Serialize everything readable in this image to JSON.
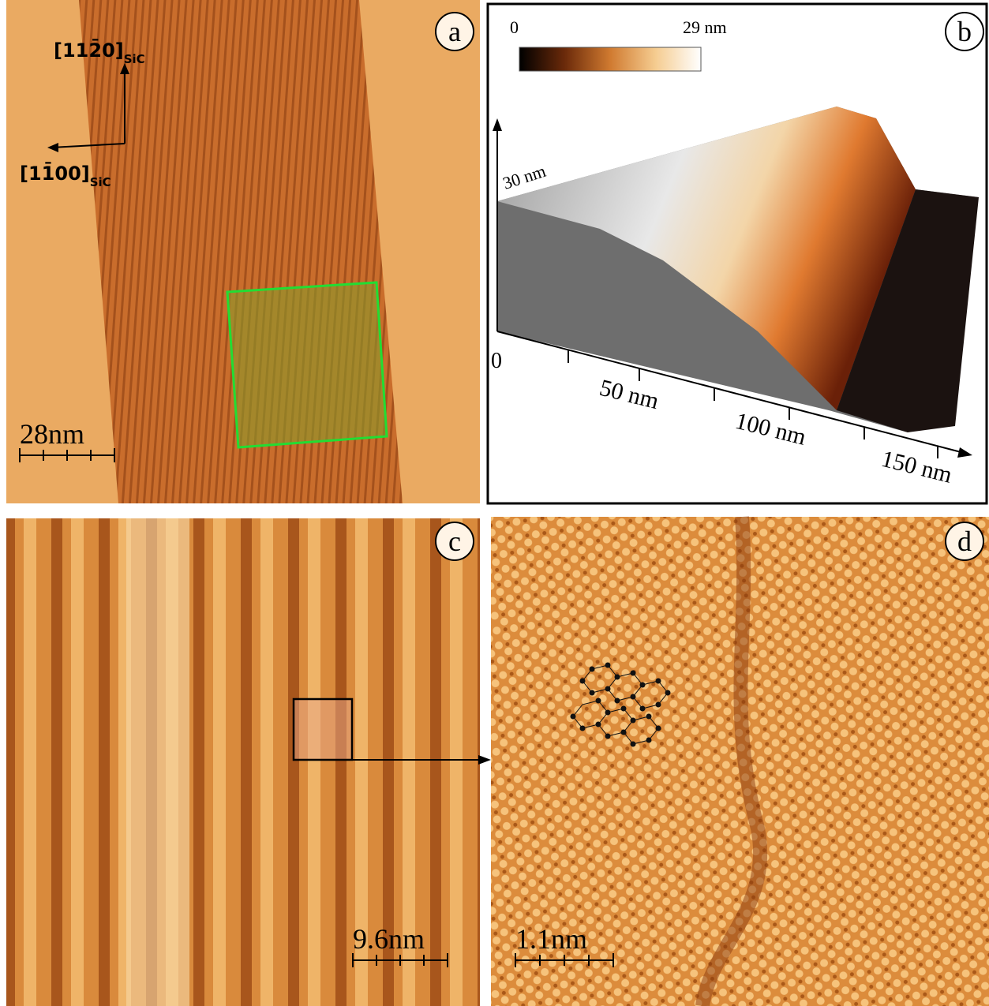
{
  "panels": [
    {
      "label": "a",
      "direction_1": {
        "index": "[112̄0]",
        "sub": "SiC"
      },
      "direction_2": {
        "index": "[11̄00]",
        "sub": "SiC"
      },
      "scale_bar": "28nm"
    },
    {
      "label": "b",
      "colorbar_min": "0",
      "colorbar_max": "29 nm",
      "z_axis": "30 nm",
      "x_axis_labels": [
        "0",
        "50 nm",
        "100 nm",
        "150 nm"
      ]
    },
    {
      "label": "c",
      "scale_bar": "9.6nm"
    },
    {
      "label": "d",
      "scale_bar": "1.1nm"
    }
  ]
}
